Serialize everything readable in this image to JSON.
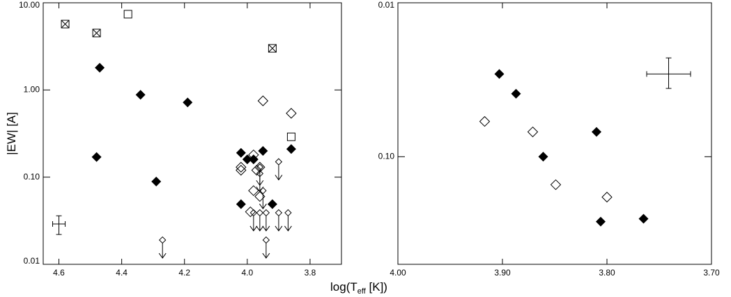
{
  "xlabel": [
    "log(T",
    "eff",
    " [K])"
  ],
  "chart_data": [
    {
      "type": "scatter",
      "ylabel": "|EW| [A]",
      "log_y": true,
      "xlim": [
        4.65,
        3.7
      ],
      "ylim": [
        0.01,
        10
      ],
      "xticks": [
        4.6,
        4.4,
        4.2,
        {
          "value": 4.0,
          "label": "4.0"
        },
        3.8
      ],
      "yticks": [
        {
          "value": 10,
          "label": "10.00"
        },
        {
          "value": 1,
          "label": "1.00"
        },
        {
          "value": 0.1,
          "label": "0.10"
        },
        0.01
      ],
      "series": [
        {
          "marker": "crossed-square",
          "color": "#000000",
          "x": [
            4.58,
            4.48,
            3.92
          ],
          "values": [
            5.7,
            4.5,
            3.0
          ]
        },
        {
          "marker": "open-square",
          "color": "#000000",
          "x": [
            4.38,
            3.86
          ],
          "values": [
            7.4,
            0.29
          ]
        },
        {
          "marker": "filled-diamond",
          "color": "#000000",
          "x": [
            4.47,
            4.34,
            4.19,
            4.48,
            4.29,
            4.02,
            4.0,
            3.98,
            3.95,
            3.86,
            4.02,
            3.92
          ],
          "values": [
            1.8,
            0.88,
            0.72,
            0.17,
            0.089,
            0.19,
            0.16,
            0.16,
            0.2,
            0.21,
            0.049,
            0.049
          ]
        },
        {
          "marker": "open-diamond",
          "color": "#000000",
          "x": [
            3.95,
            3.86,
            3.98,
            4.02,
            4.02,
            3.96,
            3.97,
            3.98,
            3.96,
            3.99
          ],
          "values": [
            0.75,
            0.54,
            0.18,
            0.13,
            0.12,
            0.13,
            0.12,
            0.07,
            0.06,
            0.04
          ]
        },
        {
          "marker": "upper-limit",
          "color": "#000000",
          "x": [
            4.27,
            3.9,
            3.96,
            3.96,
            3.95,
            3.98,
            3.96,
            3.94,
            3.9,
            3.87,
            3.94
          ],
          "values": [
            0.019,
            0.15,
            0.13,
            0.11,
            0.07,
            0.039,
            0.039,
            0.039,
            0.039,
            0.039,
            0.019
          ]
        }
      ],
      "error_cross": {
        "x": 4.6,
        "y": 0.029,
        "xerr": 0.02,
        "ylow": 0.022,
        "yhigh": 0.036
      }
    },
    {
      "type": "scatter",
      "log_y": true,
      "xlim": [
        4.0,
        3.7
      ],
      "ylim": [
        0.5,
        0.01
      ],
      "xticks": [
        {
          "value": 4.0,
          "label": "4.00"
        },
        {
          "value": 3.9,
          "label": "3.90"
        },
        {
          "value": 3.8,
          "label": "3.80"
        },
        {
          "value": 3.7,
          "label": "3.70"
        }
      ],
      "yticks": [
        0.01,
        {
          "value": 0.1,
          "label": "0.10"
        }
      ],
      "series": [
        {
          "marker": "filled-diamond",
          "color": "#000000",
          "x": [
            3.903,
            3.887,
            3.861,
            3.81,
            3.806,
            3.765
          ],
          "values": [
            0.029,
            0.039,
            0.1,
            0.069,
            0.264,
            0.253
          ]
        },
        {
          "marker": "open-diamond",
          "color": "#000000",
          "x": [
            3.917,
            3.871,
            3.849,
            3.8
          ],
          "values": [
            0.059,
            0.069,
            0.152,
            0.183
          ]
        }
      ],
      "error_cross": {
        "x": 3.741,
        "y": 0.029,
        "xerr": 0.021,
        "ylow": 0.0228,
        "yhigh": 0.036
      }
    }
  ]
}
